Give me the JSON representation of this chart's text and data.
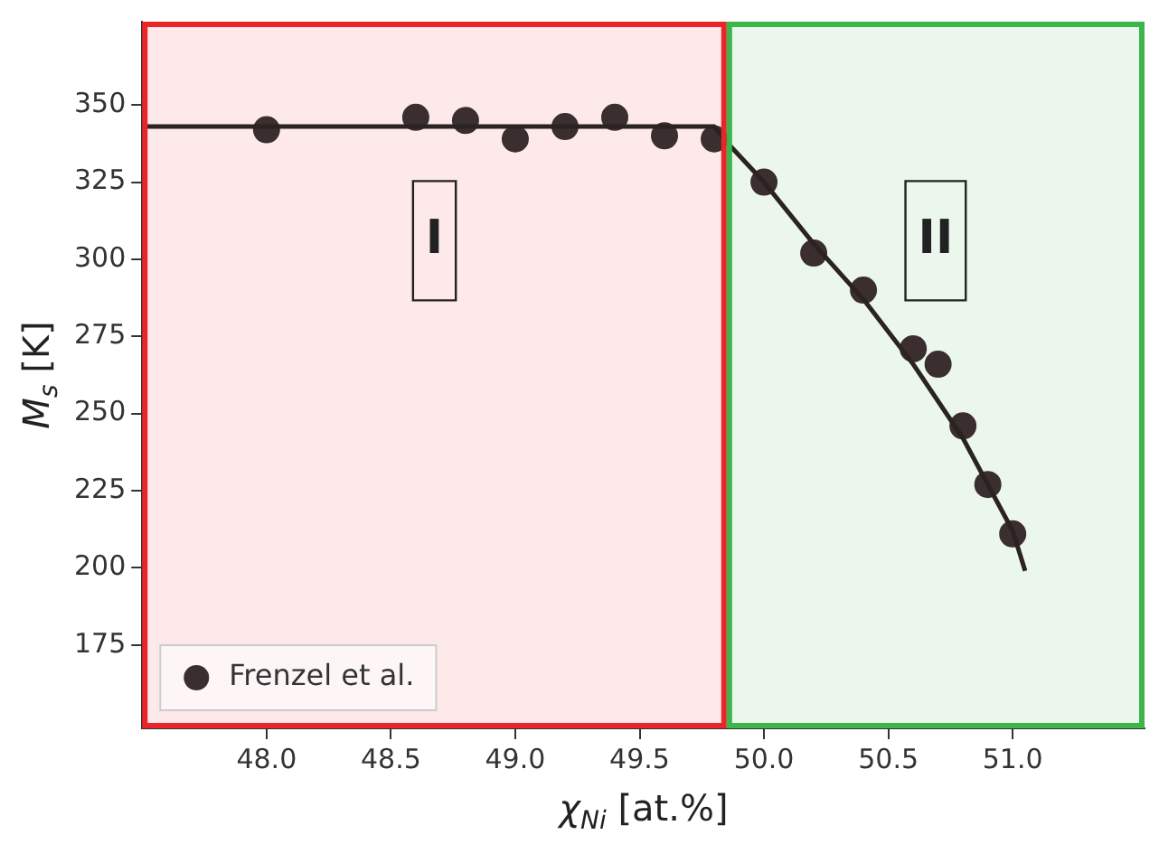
{
  "chart_data": {
    "type": "scatter",
    "xlabel": "χ$_{Ni}$ [at.%]",
    "ylabel": "M$_{s}$ [K]",
    "xlim": [
      47.5,
      51.53
    ],
    "ylim": [
      148,
      377
    ],
    "xticks": [
      {
        "value": 48,
        "label": "48.0"
      },
      {
        "value": 48.5,
        "label": "48.5"
      },
      {
        "value": 49,
        "label": "49.0"
      },
      {
        "value": 49.5,
        "label": "49.5"
      },
      {
        "value": 50,
        "label": "50.0"
      },
      {
        "value": 50.5,
        "label": "50.5"
      },
      {
        "value": 51,
        "label": "51.0"
      }
    ],
    "yticks": [
      175,
      200,
      225,
      250,
      275,
      300,
      325,
      350
    ],
    "bands": [
      {
        "axis": "x",
        "from": 47.5,
        "to": 49.85,
        "label": "I",
        "color": "#e8262a"
      },
      {
        "axis": "x",
        "from": 49.85,
        "to": 51.53,
        "label": "II",
        "color": "#3cb54a"
      }
    ],
    "series": [
      {
        "type": "line",
        "marker": "none",
        "color": "#2b2222",
        "x": [
          47.5,
          49.8,
          49.85,
          50.0,
          50.2,
          50.4,
          50.6,
          50.8,
          51.0,
          51.05
        ],
        "values": [
          343,
          343,
          338,
          325,
          305,
          287,
          266,
          242,
          212,
          199
        ]
      },
      {
        "name": "Frenzel et al.",
        "color": "#3b2e2e",
        "x": [
          48.0,
          48.6,
          48.8,
          49.0,
          49.2,
          49.4,
          49.6,
          49.8,
          50.0,
          50.2,
          50.4,
          50.6,
          50.7,
          50.8,
          50.9,
          51.0
        ],
        "values": [
          342,
          346,
          345,
          339,
          343,
          346,
          340,
          339,
          325,
          302,
          290,
          271,
          266,
          246,
          227,
          211
        ]
      }
    ],
    "legend": "bottom left",
    "marker": "circle",
    "grid": false
  }
}
